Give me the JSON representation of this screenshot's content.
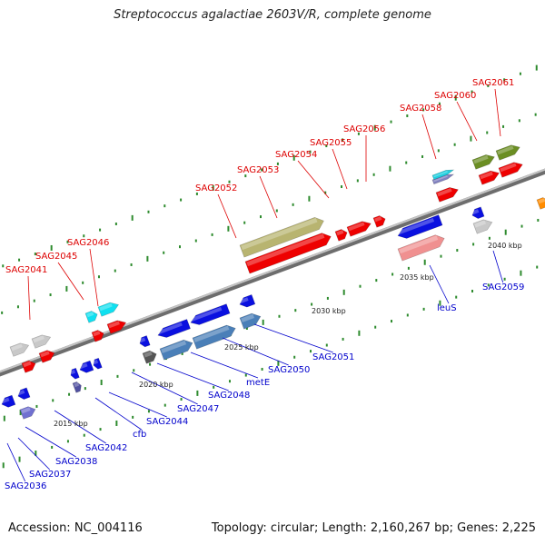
{
  "title": "Streptococcus agalactiae 2603V/R, complete genome",
  "footer": {
    "accession": "Accession: NC_004116",
    "topology": "Topology: circular; Length: 2,160,267 bp; Genes: 2,225"
  },
  "colors": {
    "upper_label": "#dd0000",
    "lower_label": "#0000cc",
    "backbone": "#8c8c8c",
    "tick": "#2e8b2e",
    "red_gene": "#ee0000",
    "blue_gene": "#0a10e0",
    "steel_gene": "#4a7fb8",
    "olive_gene": "#b8b470",
    "cyan_gene": "#10e0f0",
    "pink_gene": "#f09090",
    "green_gene": "#6b8e23",
    "gray_gene": "#c8c8c8"
  },
  "scale_labels": [
    "2015 kbp",
    "2020 kbp",
    "2025 kbp",
    "2030 kbp",
    "2035 kbp",
    "2040 kbp"
  ],
  "upper_genes": [
    "SAG2041",
    "SAG2045",
    "SAG2046",
    "SAG2052",
    "SAG2053",
    "SAG2054",
    "SAG2055",
    "SAG2056",
    "SAG2058",
    "SAG2060",
    "SAG2061"
  ],
  "lower_genes": [
    "SAG2036",
    "SAG2037",
    "SAG2038",
    "SAG2042",
    "cfb",
    "SAG2044",
    "SAG2047",
    "SAG2048",
    "metE",
    "SAG2050",
    "SAG2051",
    "leuS",
    "SAG2059"
  ]
}
